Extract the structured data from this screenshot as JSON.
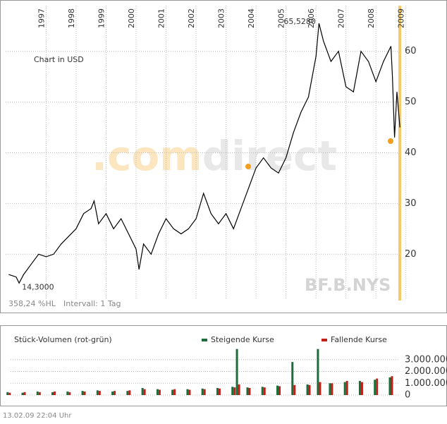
{
  "chart_data": [
    {
      "type": "line",
      "symbol": "BF.B.NYS",
      "watermark_a": ".com",
      "watermark_b": "direct",
      "currency_note": "Chart in USD",
      "range_note": "358,24 %HL",
      "interval_note": "Intervall: 1 Tag",
      "annotations": [
        {
          "x": 2006.1,
          "y": 65.528,
          "text": "65,5280"
        },
        {
          "x": 1996.1,
          "y": 14.3,
          "text": "14,3000"
        }
      ],
      "xlim": [
        1995.65,
        2009.1
      ],
      "xticks": [
        1997,
        1998,
        1999,
        2000,
        2001,
        2002,
        2003,
        2004,
        2005,
        2006,
        2007,
        2008,
        2009
      ],
      "ylim": [
        11,
        69
      ],
      "yticks": [
        20,
        30,
        40,
        50,
        60
      ],
      "grid": true,
      "series": [
        {
          "name": "BF.B",
          "color": "#000000",
          "x": [
            1995.75,
            1996,
            1996.1,
            1996.25,
            1996.5,
            1996.75,
            1997,
            1997.25,
            1997.5,
            1997.75,
            1998,
            1998.25,
            1998.5,
            1998.6,
            1998.75,
            1999,
            1999.25,
            1999.5,
            1999.75,
            2000,
            2000.1,
            2000.25,
            2000.5,
            2000.75,
            2001,
            2001.25,
            2001.5,
            2001.75,
            2002,
            2002.25,
            2002.5,
            2002.75,
            2003,
            2003.25,
            2003.5,
            2003.75,
            2004,
            2004.25,
            2004.5,
            2004.75,
            2005,
            2005.25,
            2005.5,
            2005.75,
            2006,
            2006.1,
            2006.25,
            2006.5,
            2006.75,
            2007,
            2007.25,
            2007.5,
            2007.75,
            2008,
            2008.25,
            2008.5,
            2008.55,
            2008.62,
            2008.7,
            2008.8
          ],
          "values": [
            16,
            15.5,
            14.3,
            16,
            18,
            20,
            19.5,
            20,
            22,
            23.5,
            25,
            28,
            29,
            30.5,
            26,
            28,
            25,
            27,
            24,
            21,
            17,
            22,
            20,
            24,
            27,
            25,
            24,
            25,
            27,
            32,
            28,
            26,
            28,
            25,
            29,
            33,
            37,
            39,
            37,
            36,
            39,
            44,
            48,
            51,
            59,
            65.528,
            62,
            58,
            60,
            53,
            52,
            60,
            58,
            54,
            58,
            61,
            55,
            43,
            52,
            45
          ]
        }
      ]
    },
    {
      "type": "bar",
      "title": "Stück-Volumen (rot-grün)",
      "xlim": [
        1995.65,
        2009.1
      ],
      "ylim": [
        0,
        4000000
      ],
      "yticks": [
        {
          "value": 0,
          "label": "0"
        },
        {
          "value": 1000000,
          "label": "1.000.000"
        },
        {
          "value": 2000000,
          "label": "2.000.000"
        },
        {
          "value": 3000000,
          "label": "3.000.000"
        }
      ],
      "x": [
        1995.75,
        1996.25,
        1996.75,
        1997.25,
        1997.75,
        1998.25,
        1998.75,
        1999.25,
        1999.75,
        2000.25,
        2000.75,
        2001.25,
        2001.75,
        2002.25,
        2002.75,
        2003.25,
        2003.4,
        2003.75,
        2004.25,
        2004.75,
        2005.25,
        2005.75,
        2006.1,
        2006.5,
        2007,
        2007.5,
        2008,
        2008.5
      ],
      "series": [
        {
          "name": "Steigende Kurse",
          "color": "#1a6e3a",
          "values": [
            250000,
            200000,
            300000,
            250000,
            300000,
            350000,
            400000,
            300000,
            350000,
            600000,
            500000,
            450000,
            500000,
            550000,
            600000,
            700000,
            3900000,
            650000,
            700000,
            800000,
            2800000,
            900000,
            3900000,
            1000000,
            1100000,
            1200000,
            1300000,
            1500000
          ]
        },
        {
          "name": "Fallende Kurse",
          "color": "#c0201a",
          "values": [
            200000,
            250000,
            250000,
            300000,
            250000,
            300000,
            350000,
            350000,
            400000,
            500000,
            450000,
            500000,
            450000,
            500000,
            550000,
            650000,
            900000,
            600000,
            650000,
            750000,
            850000,
            850000,
            1100000,
            1000000,
            1200000,
            1100000,
            1400000,
            1600000
          ]
        }
      ]
    }
  ],
  "footer": "13.02.09    22:04 Uhr"
}
